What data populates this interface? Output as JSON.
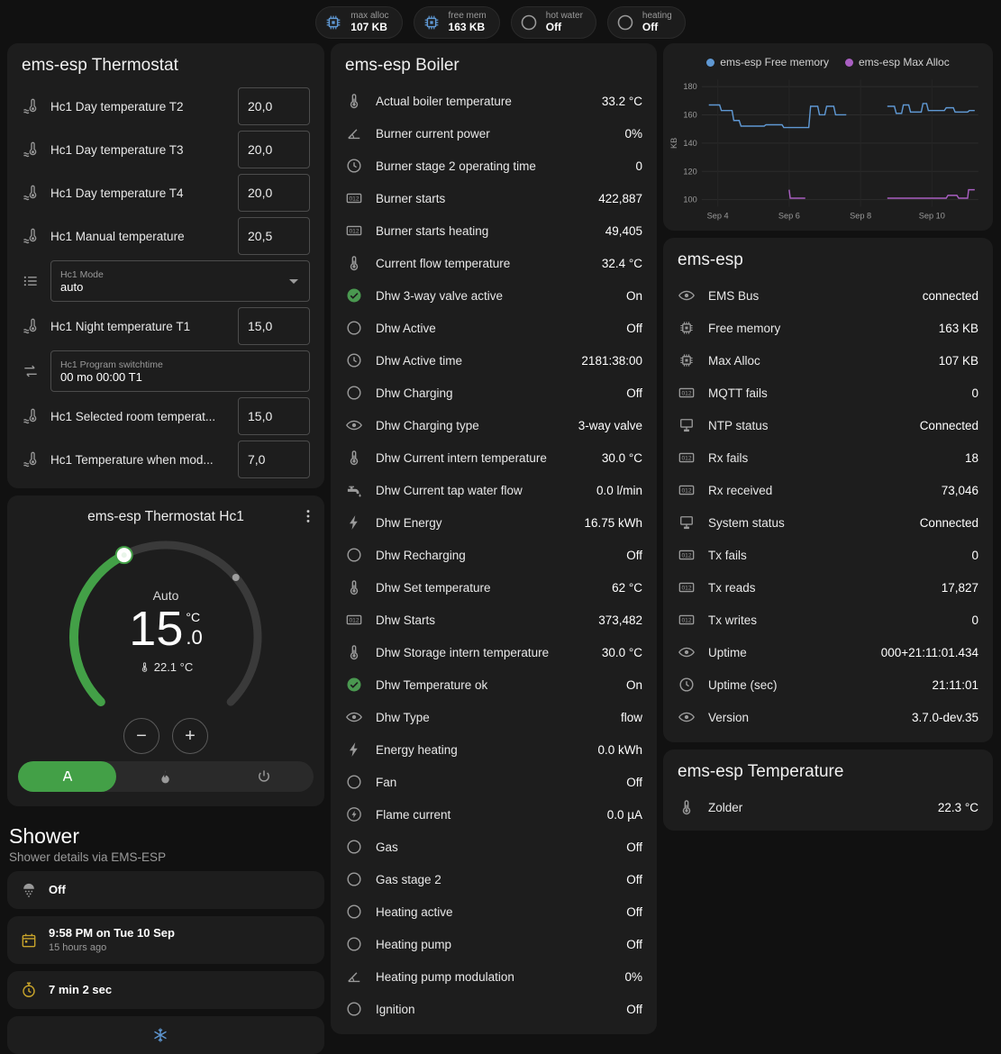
{
  "badges": [
    {
      "icon": "chip",
      "color": "blue",
      "label": "max alloc",
      "value": "107 KB"
    },
    {
      "icon": "chip",
      "color": "blue",
      "label": "free mem",
      "value": "163 KB"
    },
    {
      "icon": "circle",
      "color": "gray",
      "label": "hot water",
      "value": "Off"
    },
    {
      "icon": "circle",
      "color": "gray",
      "label": "heating",
      "value": "Off"
    }
  ],
  "thermostat_card": {
    "title": "ems-esp Thermostat",
    "rows": [
      {
        "type": "number",
        "icon": "thermo-water",
        "name": "Hc1 Day temperature T2",
        "value": "20,0"
      },
      {
        "type": "number",
        "icon": "thermo-water",
        "name": "Hc1 Day temperature T3",
        "value": "20,0"
      },
      {
        "type": "number",
        "icon": "thermo-water",
        "name": "Hc1 Day temperature T4",
        "value": "20,0"
      },
      {
        "type": "number",
        "icon": "thermo-water",
        "name": "Hc1 Manual temperature",
        "value": "20,5"
      },
      {
        "type": "select",
        "icon": "list",
        "label": "Hc1 Mode",
        "value": "auto"
      },
      {
        "type": "number",
        "icon": "thermo-water",
        "name": "Hc1 Night temperature T1",
        "value": "15,0"
      },
      {
        "type": "text",
        "icon": "swap",
        "label": "Hc1 Program switchtime",
        "value": "00 mo 00:00 T1"
      },
      {
        "type": "number",
        "icon": "thermo-water",
        "name": "Hc1 Selected room temperat...",
        "value": "15,0"
      },
      {
        "type": "number",
        "icon": "thermo-water",
        "name": "Hc1 Temperature when mod...",
        "value": "7,0"
      }
    ]
  },
  "dial": {
    "title": "ems-esp Thermostat Hc1",
    "mode_label": "Auto",
    "value_int": "15",
    "value_dec": ".0",
    "unit": "°C",
    "current_label": "22.1 °C",
    "min": 5,
    "max": 30,
    "target": 15,
    "current": 22.1,
    "decrease": "−",
    "increase": "+",
    "accent_color": "#43a047",
    "modes": [
      {
        "icon": "auto",
        "color": "white",
        "selected": true
      },
      {
        "icon": "flame",
        "color": "gray"
      },
      {
        "icon": "power",
        "color": "gray"
      }
    ]
  },
  "shower": {
    "title": "Shower",
    "subtitle": "Shower details via EMS-ESP",
    "cards": [
      {
        "icon": "shower",
        "color": "gray",
        "primary": "Off"
      },
      {
        "icon": "calendar",
        "color": "amber",
        "primary": "9:58 PM on Tue 10 Sep",
        "secondary": "15 hours ago"
      },
      {
        "icon": "timer",
        "color": "amber",
        "primary": "7 min 2 sec"
      },
      {
        "icon": "snowflake",
        "color": "blue",
        "variant": "center"
      }
    ]
  },
  "boiler_card": {
    "title": "ems-esp Boiler",
    "rows": [
      {
        "icon": "thermo",
        "name": "Actual boiler temperature",
        "value": "33.2 °C"
      },
      {
        "icon": "angle",
        "name": "Burner current power",
        "value": "0%"
      },
      {
        "icon": "clock",
        "name": "Burner stage 2 operating time",
        "value": "0"
      },
      {
        "icon": "counter",
        "name": "Burner starts",
        "value": "422,887"
      },
      {
        "icon": "counter",
        "name": "Burner starts heating",
        "value": "49,405"
      },
      {
        "icon": "thermo",
        "name": "Current flow temperature",
        "value": "32.4 °C"
      },
      {
        "icon": "check-circle",
        "color": "green",
        "name": "Dhw 3-way valve active",
        "value": "On"
      },
      {
        "icon": "circle",
        "name": "Dhw Active",
        "value": "Off"
      },
      {
        "icon": "clock",
        "name": "Dhw Active time",
        "value": "2181:38:00"
      },
      {
        "icon": "circle",
        "name": "Dhw Charging",
        "value": "Off"
      },
      {
        "icon": "eye",
        "name": "Dhw Charging type",
        "value": "3-way valve"
      },
      {
        "icon": "thermo",
        "name": "Dhw Current intern temperature",
        "value": "30.0 °C"
      },
      {
        "icon": "faucet",
        "name": "Dhw Current tap water flow",
        "value": "0.0 l/min"
      },
      {
        "icon": "flash",
        "name": "Dhw Energy",
        "value": "16.75 kWh"
      },
      {
        "icon": "circle",
        "name": "Dhw Recharging",
        "value": "Off"
      },
      {
        "icon": "thermo",
        "name": "Dhw Set temperature",
        "value": "62 °C"
      },
      {
        "icon": "counter",
        "name": "Dhw Starts",
        "value": "373,482"
      },
      {
        "icon": "thermo",
        "name": "Dhw Storage intern temperature",
        "value": "30.0 °C"
      },
      {
        "icon": "check-circle",
        "color": "green",
        "name": "Dhw Temperature ok",
        "value": "On"
      },
      {
        "icon": "eye",
        "name": "Dhw Type",
        "value": "flow"
      },
      {
        "icon": "flash",
        "name": "Energy heating",
        "value": "0.0 kWh"
      },
      {
        "icon": "circle",
        "name": "Fan",
        "value": "Off"
      },
      {
        "icon": "flash-circle",
        "name": "Flame current",
        "value": "0.0 µA"
      },
      {
        "icon": "circle",
        "name": "Gas",
        "value": "Off"
      },
      {
        "icon": "circle",
        "name": "Gas stage 2",
        "value": "Off"
      },
      {
        "icon": "circle",
        "name": "Heating active",
        "value": "Off"
      },
      {
        "icon": "circle",
        "name": "Heating pump",
        "value": "Off"
      },
      {
        "icon": "angle",
        "name": "Heating pump modulation",
        "value": "0%"
      },
      {
        "icon": "circle",
        "name": "Ignition",
        "value": "Off"
      }
    ]
  },
  "chart_card": {
    "legend": [
      {
        "label": "ems-esp Free memory",
        "color": "#5f98d3"
      },
      {
        "label": "ems-esp Max Alloc",
        "color": "#a95fc2"
      }
    ]
  },
  "chart_data": {
    "type": "line",
    "title": "",
    "xlabel": "",
    "ylabel": "KB",
    "ylim": [
      95,
      185
    ],
    "yticks": [
      100,
      120,
      140,
      160,
      180
    ],
    "xlim": [
      3.55,
      11.3
    ],
    "xticks": [
      {
        "v": 4,
        "label": "Sep 4"
      },
      {
        "v": 6,
        "label": "Sep 6"
      },
      {
        "v": 8,
        "label": "Sep 8"
      },
      {
        "v": 10,
        "label": "Sep 10"
      }
    ],
    "grid": true,
    "legend_position": "top",
    "series": [
      {
        "name": "ems-esp Free memory",
        "color": "#5f98d3",
        "segments": [
          [
            [
              3.75,
              167
            ],
            [
              4.05,
              167
            ],
            [
              4.1,
              163
            ],
            [
              4.4,
              163
            ],
            [
              4.45,
              156
            ],
            [
              4.6,
              156
            ],
            [
              4.65,
              152
            ],
            [
              5.3,
              152
            ],
            [
              5.35,
              153
            ],
            [
              5.8,
              153
            ],
            [
              5.85,
              151
            ],
            [
              6.55,
              151
            ],
            [
              6.6,
              166
            ],
            [
              6.8,
              166
            ],
            [
              6.85,
              160
            ],
            [
              7.0,
              160
            ],
            [
              7.05,
              166
            ],
            [
              7.25,
              166
            ],
            [
              7.3,
              160
            ],
            [
              7.6,
              160
            ]
          ],
          [
            [
              8.75,
              166
            ],
            [
              8.95,
              166
            ],
            [
              9.0,
              161
            ],
            [
              9.15,
              161
            ],
            [
              9.2,
              167
            ],
            [
              9.35,
              167
            ],
            [
              9.4,
              162
            ],
            [
              9.7,
              162
            ],
            [
              9.75,
              168
            ],
            [
              9.85,
              168
            ],
            [
              9.9,
              163
            ],
            [
              10.35,
              163
            ],
            [
              10.4,
              165
            ],
            [
              10.6,
              165
            ],
            [
              10.65,
              162
            ],
            [
              11.0,
              162
            ],
            [
              11.05,
              163
            ],
            [
              11.2,
              163
            ]
          ]
        ]
      },
      {
        "name": "ems-esp Max Alloc",
        "color": "#a95fc2",
        "segments": [
          [
            [
              6.0,
              107
            ],
            [
              6.03,
              101
            ],
            [
              6.45,
              101
            ]
          ],
          [
            [
              8.75,
              101
            ],
            [
              10.4,
              101
            ],
            [
              10.45,
              103
            ],
            [
              10.7,
              103
            ],
            [
              10.75,
              101
            ],
            [
              11.0,
              101
            ],
            [
              11.03,
              107
            ],
            [
              11.2,
              107
            ]
          ]
        ]
      }
    ]
  },
  "emsesp_card": {
    "title": "ems-esp",
    "rows": [
      {
        "icon": "eye",
        "name": "EMS Bus",
        "value": "connected"
      },
      {
        "icon": "chip",
        "name": "Free memory",
        "value": "163 KB"
      },
      {
        "icon": "chip",
        "name": "Max Alloc",
        "value": "107 KB"
      },
      {
        "icon": "counter",
        "name": "MQTT fails",
        "value": "0"
      },
      {
        "icon": "network",
        "name": "NTP status",
        "value": "Connected"
      },
      {
        "icon": "counter",
        "name": "Rx fails",
        "value": "18"
      },
      {
        "icon": "counter",
        "name": "Rx received",
        "value": "73,046"
      },
      {
        "icon": "network",
        "name": "System status",
        "value": "Connected"
      },
      {
        "icon": "counter",
        "name": "Tx fails",
        "value": "0"
      },
      {
        "icon": "counter",
        "name": "Tx reads",
        "value": "17,827"
      },
      {
        "icon": "counter",
        "name": "Tx writes",
        "value": "0"
      },
      {
        "icon": "eye",
        "name": "Uptime",
        "value": "000+21:11:01.434"
      },
      {
        "icon": "clock",
        "name": "Uptime (sec)",
        "value": "21:11:01"
      },
      {
        "icon": "eye",
        "name": "Version",
        "value": "3.7.0-dev.35"
      }
    ]
  },
  "temp_card": {
    "title": "ems-esp Temperature",
    "rows": [
      {
        "icon": "thermo",
        "name": "Zolder",
        "value": "22.3 °C"
      }
    ]
  }
}
